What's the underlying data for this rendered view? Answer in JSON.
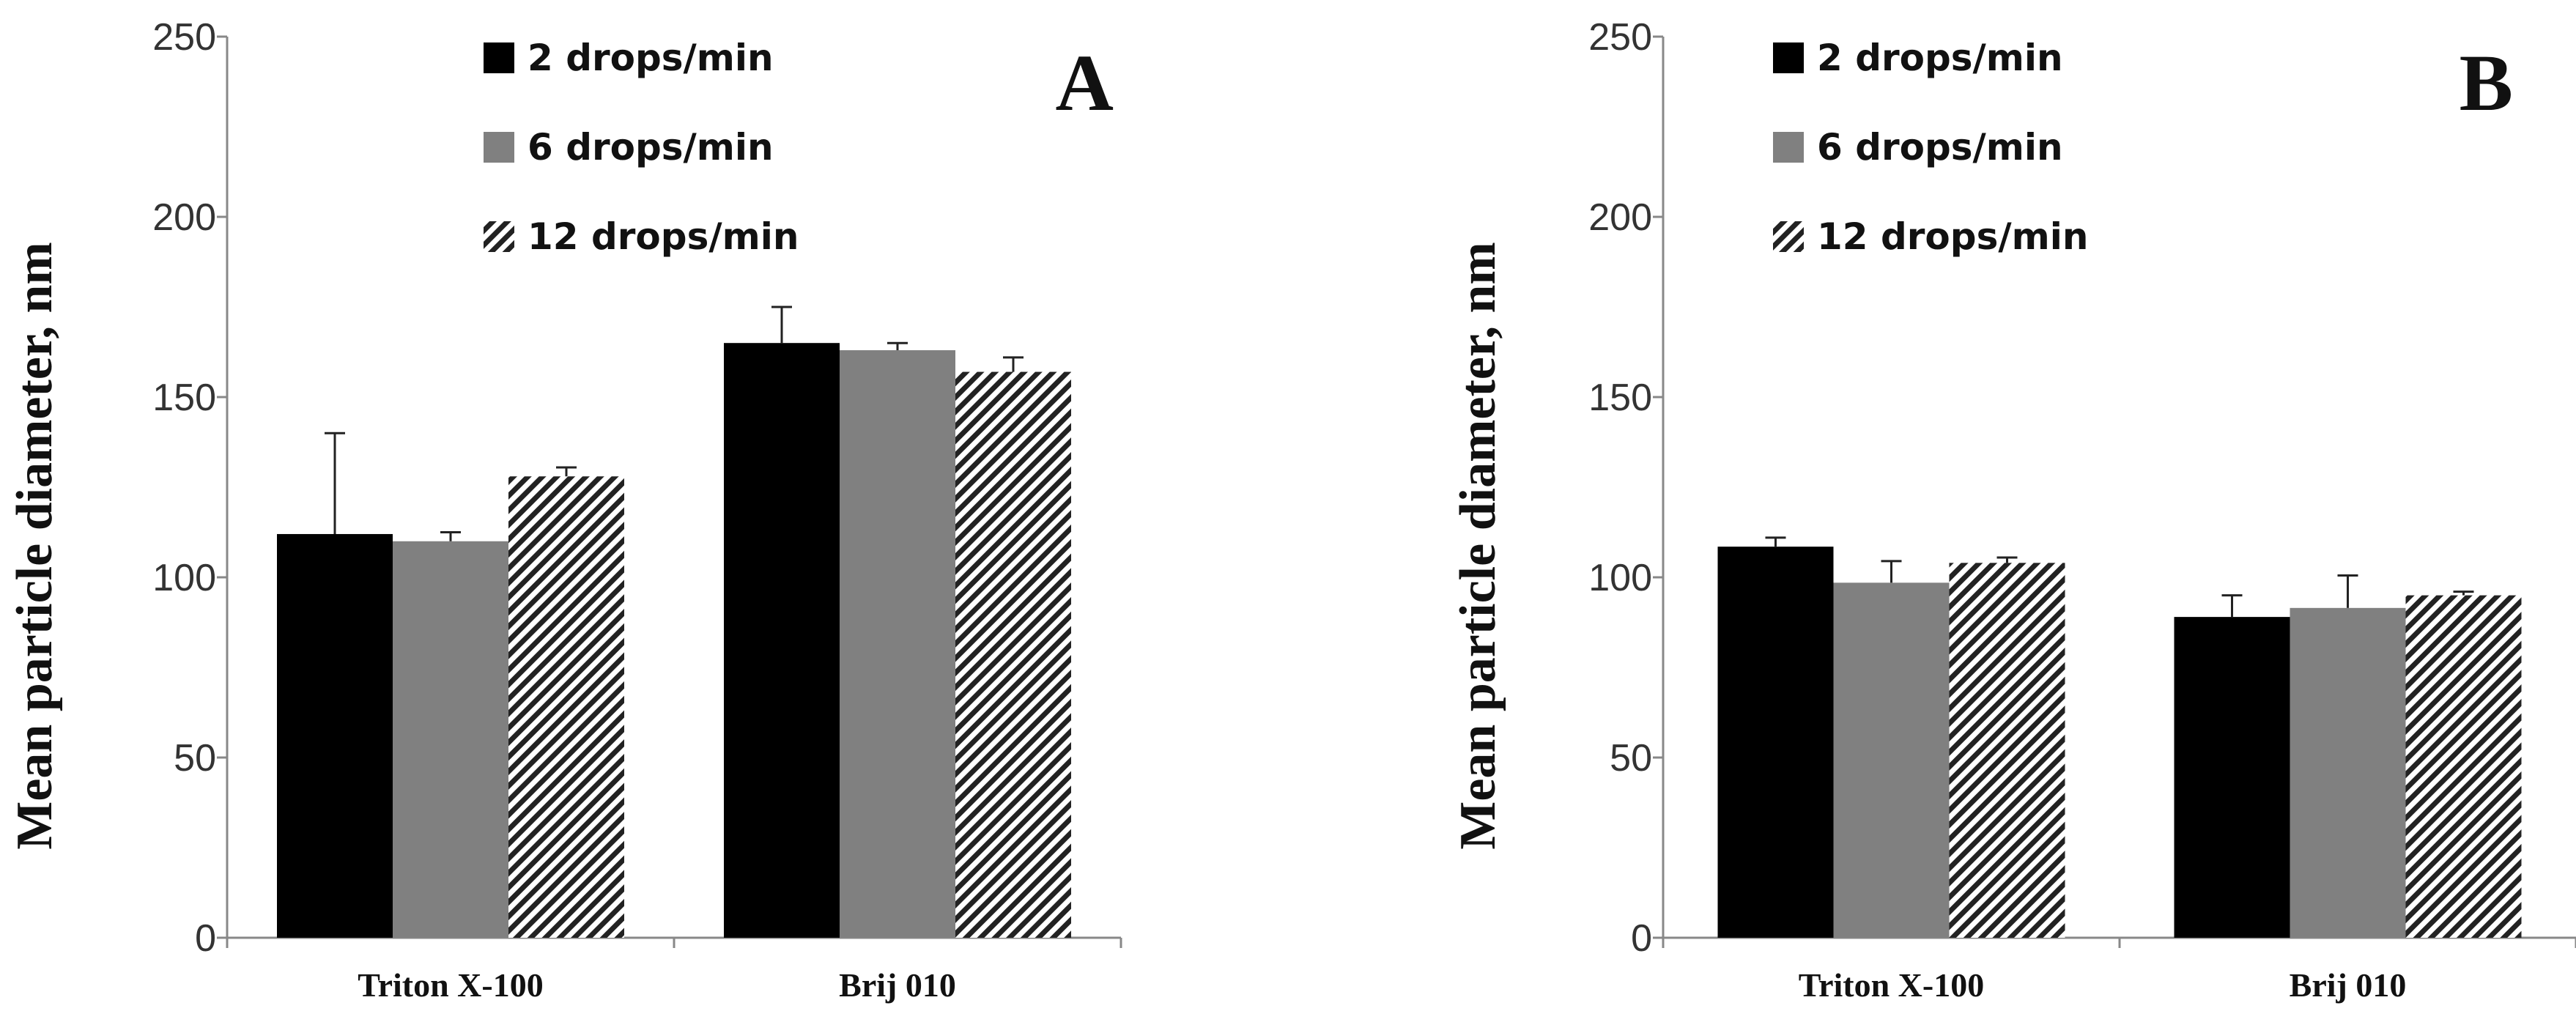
{
  "colors": {
    "series_2": "#000000",
    "series_6": "#808080",
    "series_12_stripe": "#222222",
    "series_12_bg": "#ffffff",
    "axis": "#888888",
    "errorbar": "#222222"
  },
  "chart_data": [
    {
      "type": "bar",
      "panel_label": "A",
      "ylabel": "Mean particle  diameter, nm",
      "xlabel": "",
      "ylim": [
        0,
        250
      ],
      "yticks": [
        "0",
        "50",
        "100",
        "150",
        "200",
        "250"
      ],
      "categories": [
        "Triton X-100",
        "Brij 010"
      ],
      "legend_position": "top-center",
      "series": [
        {
          "name": "2 drops/min",
          "pattern": "solid-black",
          "values": [
            112,
            165
          ],
          "errors": [
            28,
            10
          ]
        },
        {
          "name": "6 drops/min",
          "pattern": "solid-gray",
          "values": [
            110,
            163
          ],
          "errors": [
            2.5,
            2
          ]
        },
        {
          "name": "12 drops/min",
          "pattern": "diagonal-hatch",
          "values": [
            128,
            157
          ],
          "errors": [
            2.5,
            4
          ]
        }
      ]
    },
    {
      "type": "bar",
      "panel_label": "B",
      "ylabel": "Mean particle  diameter, nm",
      "xlabel": "",
      "ylim": [
        0,
        250
      ],
      "yticks": [
        "0",
        "50",
        "100",
        "150",
        "200",
        "250"
      ],
      "categories": [
        "Triton X-100",
        "Brij 010"
      ],
      "legend_position": "top-center",
      "series": [
        {
          "name": "2 drops/min",
          "pattern": "solid-black",
          "values": [
            108.5,
            89
          ],
          "errors": [
            2.5,
            6
          ]
        },
        {
          "name": "6 drops/min",
          "pattern": "solid-gray",
          "values": [
            98.5,
            91.5
          ],
          "errors": [
            6,
            9
          ]
        },
        {
          "name": "12 drops/min",
          "pattern": "diagonal-hatch",
          "values": [
            104,
            95
          ],
          "errors": [
            1.5,
            1
          ]
        }
      ]
    }
  ]
}
